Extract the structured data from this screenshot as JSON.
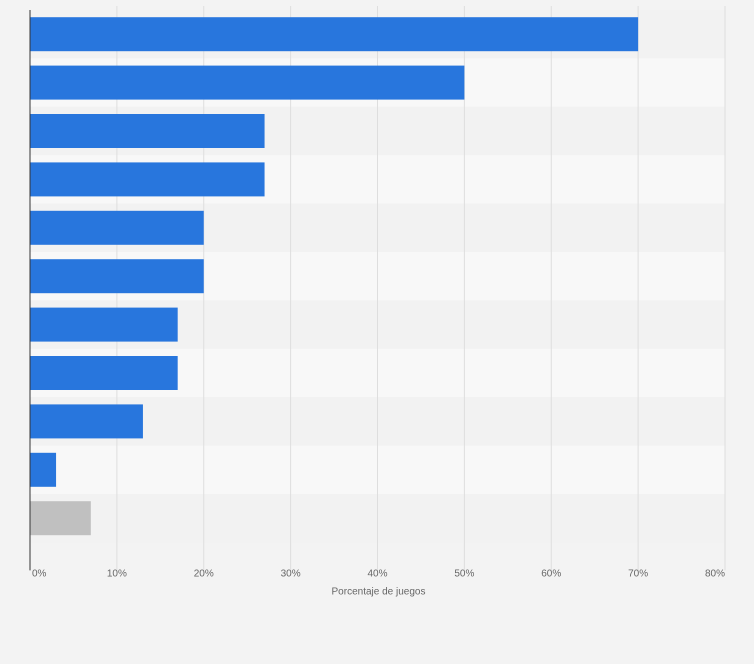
{
  "chart_data": {
    "type": "bar",
    "orientation": "horizontal",
    "categories": [
      "",
      "",
      "",
      "",
      "",
      "",
      "",
      "",
      "",
      "",
      ""
    ],
    "values": [
      70,
      50,
      27,
      27,
      20,
      20,
      17,
      17,
      13,
      3,
      7
    ],
    "bar_colors": [
      "#2876dd",
      "#2876dd",
      "#2876dd",
      "#2876dd",
      "#2876dd",
      "#2876dd",
      "#2876dd",
      "#2876dd",
      "#2876dd",
      "#2876dd",
      "#c0c0c0"
    ],
    "xlabel": "Porcentaje de juegos",
    "xlim": [
      0,
      80
    ],
    "x_ticks": [
      0,
      10,
      20,
      30,
      40,
      50,
      60,
      70,
      80
    ],
    "x_tick_labels": [
      "0%",
      "10%",
      "20%",
      "30%",
      "40%",
      "50%",
      "60%",
      "70%",
      "80%"
    ],
    "grid": true,
    "legend": "none"
  },
  "colors": {
    "background": "#f3f3f3",
    "band_dark": "#f2f2f2",
    "band_light": "#f8f8f8",
    "gridline": "#dedede",
    "axis_text": "#666666"
  }
}
